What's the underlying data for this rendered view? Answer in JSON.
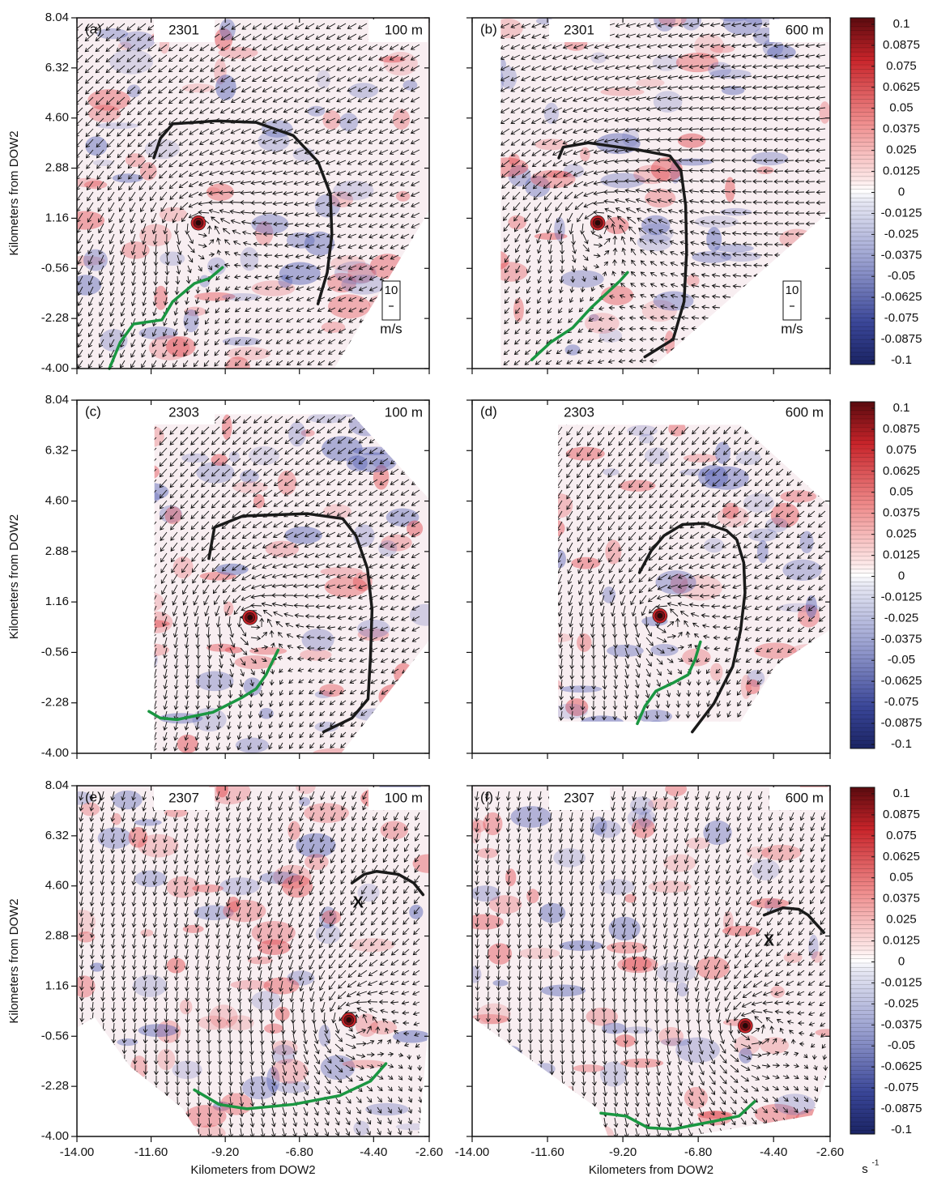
{
  "chart_data": [
    {
      "type": "vector_field",
      "panel": "(a)",
      "time": "2301",
      "height": "100 m",
      "xlim": [
        -14,
        -2.6
      ],
      "ylim": [
        -4,
        8.04
      ],
      "xticks": [
        {
          "value": -14,
          "label": "-14.00"
        },
        {
          "value": -11.6,
          "label": "-11.60"
        },
        {
          "value": -9.2,
          "label": "-9.20"
        },
        {
          "value": -6.8,
          "label": "-6.80"
        },
        {
          "value": -4.4,
          "label": "-4.40"
        },
        {
          "value": -2.6,
          "label": "-2.60"
        }
      ],
      "yticks": [
        8.04,
        6.32,
        {
          "value": 4.6,
          "label": "4.60"
        },
        2.88,
        1.16,
        -0.56,
        -2.28,
        {
          "value": -4,
          "label": "-4.00"
        }
      ],
      "show_xlabels": false,
      "show_ylabels": true,
      "ylabel": "Kilometers from DOW2",
      "vortex": {
        "x": -10.07,
        "y": 1.0
      },
      "fronts": [
        {
          "color": "#1a1a1a",
          "x": [
            -11.51,
            -11.3,
            -10.9,
            -9.5,
            -8.2,
            -7.0,
            -6.2,
            -5.8,
            -5.75,
            -5.9,
            -6.2
          ],
          "y": [
            3.23,
            3.9,
            4.4,
            4.5,
            4.45,
            4.0,
            3.1,
            2.0,
            0.59,
            -0.7,
            -1.78
          ]
        },
        {
          "color": "#1a9641",
          "x": [
            -12.95,
            -12.6,
            -12.17,
            -11.25,
            -10.9,
            -10.2,
            -9.7,
            -9.29
          ],
          "y": [
            -4.0,
            -3.1,
            -2.47,
            -2.33,
            -1.7,
            -1.08,
            -0.9,
            -0.53
          ]
        }
      ],
      "scale_arrow": {
        "value": 10,
        "unit": "m/s"
      }
    },
    {
      "type": "vector_field",
      "panel": "(b)",
      "time": "2301",
      "height": "600 m",
      "xlim": [
        -14,
        -2.6
      ],
      "ylim": [
        -4,
        8.04
      ],
      "xticks": [
        {
          "value": -14,
          "label": "-14.00"
        },
        {
          "value": -11.6,
          "label": "-11.60"
        },
        {
          "value": -9.2,
          "label": "-9.20"
        },
        {
          "value": -6.8,
          "label": "-6.80"
        },
        {
          "value": -4.4,
          "label": "-4.40"
        },
        {
          "value": -2.6,
          "label": "-2.60"
        }
      ],
      "yticks": [
        8.04,
        6.32,
        {
          "value": 4.6,
          "label": "4.60"
        },
        2.88,
        1.16,
        -0.56,
        -2.28,
        {
          "value": -4,
          "label": "-4.00"
        }
      ],
      "show_xlabels": false,
      "show_ylabels": false,
      "vortex": {
        "x": -10.0,
        "y": 1.0
      },
      "fronts": [
        {
          "color": "#1a1a1a",
          "x": [
            -11.24,
            -11.1,
            -10.3,
            -8.67,
            -7.7,
            -7.35,
            -7.2,
            -7.17,
            -7.25,
            -7.6,
            -8.5
          ],
          "y": [
            3.23,
            3.6,
            3.75,
            3.5,
            3.3,
            2.8,
            1.6,
            0.0,
            -1.7,
            -3.0,
            -3.6
          ]
        },
        {
          "color": "#1a9641",
          "x": [
            -12.1,
            -11.5,
            -10.8,
            -10.2,
            -9.7,
            -9.3,
            -9.05
          ],
          "y": [
            -3.7,
            -3.1,
            -2.6,
            -1.9,
            -1.4,
            -1.0,
            -0.7
          ]
        }
      ],
      "scale_arrow": {
        "value": 10,
        "unit": "m/s"
      }
    },
    {
      "type": "vector_field",
      "panel": "(c)",
      "time": "2303",
      "height": "100 m",
      "xlim": [
        -14,
        -2.6
      ],
      "ylim": [
        -4,
        8.04
      ],
      "xticks": [
        {
          "value": -14,
          "label": "-14.00"
        },
        {
          "value": -11.6,
          "label": "-11.60"
        },
        {
          "value": -9.2,
          "label": "-9.20"
        },
        {
          "value": -6.8,
          "label": "-6.80"
        },
        {
          "value": -4.4,
          "label": "-4.40"
        },
        {
          "value": -2.6,
          "label": "-2.60"
        }
      ],
      "yticks": [
        8.04,
        6.32,
        {
          "value": 4.6,
          "label": "4.60"
        },
        2.88,
        1.16,
        -0.56,
        -2.28,
        {
          "value": -4,
          "label": "-4.00"
        }
      ],
      "show_xlabels": false,
      "show_ylabels": true,
      "ylabel": "Kilometers from DOW2",
      "vortex": {
        "x": -8.4,
        "y": 0.63
      },
      "fronts": [
        {
          "color": "#1a1a1a",
          "x": [
            -9.73,
            -9.55,
            -8.63,
            -6.54,
            -5.4,
            -4.97,
            -4.6,
            -4.45,
            -4.5,
            -4.58,
            -5.1,
            -6.02
          ],
          "y": [
            2.64,
            3.7,
            4.09,
            4.17,
            4.0,
            3.42,
            2.3,
            0.91,
            -0.7,
            -2.15,
            -2.8,
            -3.27
          ]
        },
        {
          "color": "#1a9641",
          "x": [
            -11.67,
            -11.3,
            -10.76,
            -9.6,
            -8.66,
            -8.2,
            -7.88,
            -7.49
          ],
          "y": [
            -2.57,
            -2.8,
            -2.85,
            -2.6,
            -2.1,
            -1.8,
            -1.32,
            -0.48
          ]
        }
      ]
    },
    {
      "type": "vector_field",
      "panel": "(d)",
      "time": "2303",
      "height": "600 m",
      "xlim": [
        -14,
        -2.6
      ],
      "ylim": [
        -4,
        8.04
      ],
      "xticks": [
        {
          "value": -14,
          "label": "-14.00"
        },
        {
          "value": -11.6,
          "label": "-11.60"
        },
        {
          "value": -9.2,
          "label": "-9.20"
        },
        {
          "value": -6.8,
          "label": "-6.80"
        },
        {
          "value": -4.4,
          "label": "-4.40"
        },
        {
          "value": -2.6,
          "label": "-2.60"
        }
      ],
      "yticks": [
        8.04,
        6.32,
        {
          "value": 4.6,
          "label": "4.60"
        },
        2.88,
        1.16,
        -0.56,
        -2.28,
        {
          "value": -4,
          "label": "-4.00"
        }
      ],
      "show_xlabels": false,
      "show_ylabels": false,
      "vortex": {
        "x": -8.02,
        "y": 0.69
      },
      "fronts": [
        {
          "color": "#1a1a1a",
          "x": [
            -8.67,
            -8.3,
            -7.89,
            -7.3,
            -6.6,
            -5.9,
            -5.57,
            -5.35,
            -5.31,
            -5.45,
            -5.7,
            -6.3,
            -6.99
          ],
          "y": [
            2.16,
            2.9,
            3.42,
            3.8,
            3.84,
            3.6,
            3.28,
            2.5,
            1.47,
            0.2,
            -1.04,
            -2.3,
            -3.27
          ]
        },
        {
          "color": "#1a9641",
          "x": [
            -8.74,
            -8.5,
            -8.15,
            -7.6,
            -7.12,
            -6.9,
            -6.73
          ],
          "y": [
            -2.99,
            -2.4,
            -1.88,
            -1.6,
            -1.32,
            -0.8,
            -0.2
          ]
        }
      ]
    },
    {
      "type": "vector_field",
      "panel": "(e)",
      "time": "2307",
      "height": "100 m",
      "xlim": [
        -14,
        -2.6
      ],
      "ylim": [
        -4,
        8.04
      ],
      "xticks": [
        {
          "value": -14,
          "label": "-14.00"
        },
        {
          "value": -11.6,
          "label": "-11.60"
        },
        {
          "value": -9.2,
          "label": "-9.20"
        },
        {
          "value": -6.8,
          "label": "-6.80"
        },
        {
          "value": -4.4,
          "label": "-4.40"
        },
        {
          "value": -2.6,
          "label": "-2.60"
        }
      ],
      "yticks": [
        8.04,
        6.32,
        {
          "value": 4.6,
          "label": "4.60"
        },
        2.88,
        1.16,
        -0.56,
        -2.28,
        {
          "value": -4,
          "label": "-4.00"
        }
      ],
      "show_xlabels": true,
      "show_ylabels": true,
      "xlabel": "Kilometers from DOW2",
      "ylabel": "Kilometers from DOW2",
      "vortex": {
        "x": -5.2,
        "y": 0.0
      },
      "marker": {
        "text": "X",
        "x": -4.9,
        "y": 4.0
      },
      "fronts": [
        {
          "color": "#1a1a1a",
          "x": [
            -5.1,
            -4.7,
            -4.3,
            -3.6,
            -3.1,
            -2.8
          ],
          "y": [
            4.7,
            5.0,
            5.1,
            5.0,
            4.7,
            4.3
          ]
        },
        {
          "color": "#1a9641",
          "x": [
            -10.2,
            -9.4,
            -8.5,
            -7.0,
            -5.5,
            -4.5,
            -4.0
          ],
          "y": [
            -2.4,
            -2.9,
            -3.05,
            -2.9,
            -2.6,
            -2.1,
            -1.5
          ]
        }
      ]
    },
    {
      "type": "vector_field",
      "panel": "(f)",
      "time": "2307",
      "height": "600 m",
      "xlim": [
        -14,
        -2.6
      ],
      "ylim": [
        -4,
        8.04
      ],
      "xticks": [
        {
          "value": -14,
          "label": "-14.00"
        },
        {
          "value": -11.6,
          "label": "-11.60"
        },
        {
          "value": -9.2,
          "label": "-9.20"
        },
        {
          "value": -6.8,
          "label": "-6.80"
        },
        {
          "value": -4.4,
          "label": "-4.40"
        },
        {
          "value": -2.6,
          "label": "-2.60"
        }
      ],
      "yticks": [
        8.04,
        6.32,
        {
          "value": 4.6,
          "label": "4.60"
        },
        2.88,
        1.16,
        -0.56,
        -2.28,
        {
          "value": -4,
          "label": "-4.00"
        }
      ],
      "show_xlabels": true,
      "show_ylabels": false,
      "xlabel": "Kilometers from DOW2",
      "vortex": {
        "x": -5.3,
        "y": -0.2
      },
      "marker": {
        "text": "X",
        "x": -4.55,
        "y": 2.7
      },
      "fronts": [
        {
          "color": "#1a1a1a",
          "x": [
            -4.7,
            -4.1,
            -3.6,
            -3.3,
            -2.8
          ],
          "y": [
            3.6,
            3.85,
            3.8,
            3.6,
            3.0
          ]
        },
        {
          "color": "#1a9641",
          "x": [
            -9.9,
            -9.1,
            -8.4,
            -7.6,
            -6.4,
            -5.5,
            -5.0
          ],
          "y": [
            -3.2,
            -3.3,
            -3.7,
            -3.75,
            -3.5,
            -3.3,
            -2.8
          ]
        }
      ]
    }
  ],
  "colorbar": {
    "lim": [
      -0.1,
      0.1
    ],
    "ticks": [
      0.1,
      0.0875,
      0.075,
      0.0625,
      0.05,
      0.0375,
      0.025,
      0.0125,
      0,
      -0.0125,
      -0.025,
      -0.0375,
      -0.05,
      -0.0625,
      -0.075,
      -0.0875,
      -0.1
    ],
    "unit": "s",
    "unit_exponent": "-1"
  }
}
